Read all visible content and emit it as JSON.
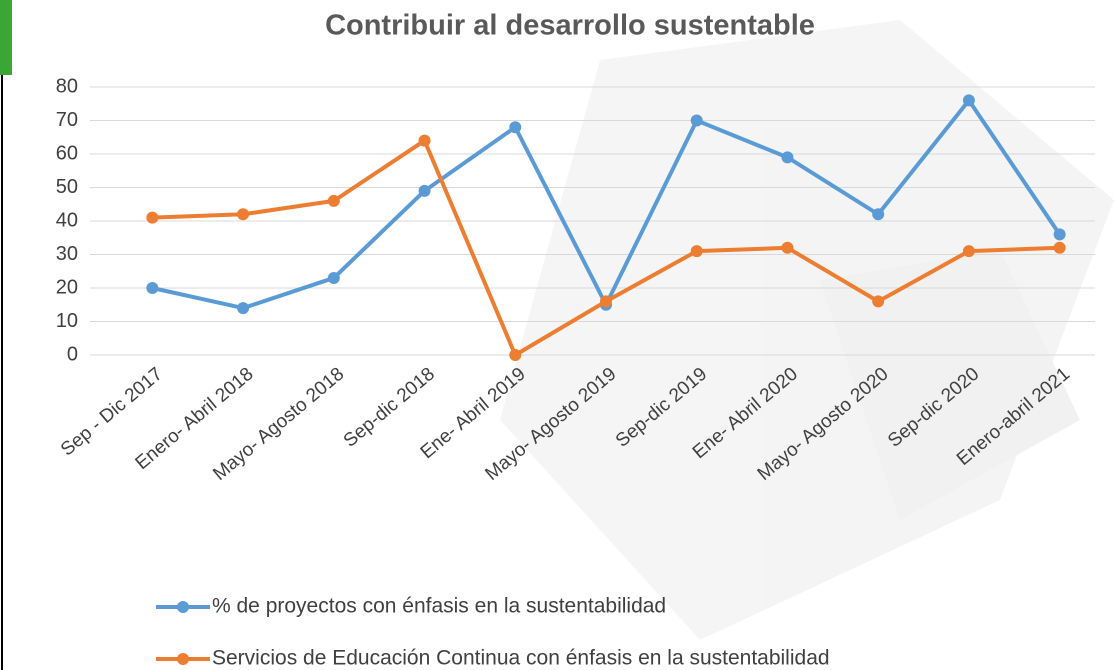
{
  "chart_data": {
    "type": "line",
    "title": "Contribuir  al desarrollo  sustentable",
    "categories": [
      "Sep - Dic 2017",
      "Enero- Abril 2018",
      "Mayo- Agosto 2018",
      "Sep-dic 2018",
      "Ene- Abril 2019",
      "Mayo- Agosto 2019",
      "Sep-dic 2019",
      "Ene- Abril 2020",
      "Mayo- Agosto 2020",
      "Sep-dic 2020",
      "Enero-abril 2021"
    ],
    "series": [
      {
        "name": "% de proyectos con énfasis en la sustentabilidad",
        "color": "#5b9bd5",
        "values": [
          20,
          14,
          23,
          49,
          68,
          15,
          70,
          59,
          42,
          76,
          36
        ]
      },
      {
        "name": "Servicios de Educación Continua con énfasis en la sustentabilidad",
        "color": "#ed7d31",
        "values": [
          41,
          42,
          46,
          64,
          0,
          16,
          31,
          32,
          16,
          31,
          32
        ]
      }
    ],
    "ylim": [
      0,
      80
    ],
    "yticks": [
      0,
      10,
      20,
      30,
      40,
      50,
      60,
      70,
      80
    ],
    "grid": true,
    "legend": "bottom"
  }
}
